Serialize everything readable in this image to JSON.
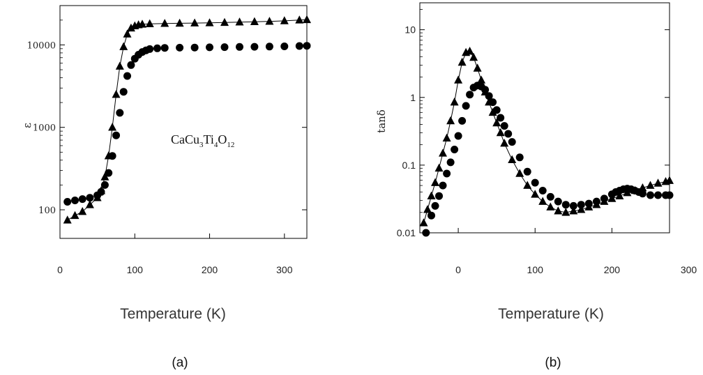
{
  "chart_data": [
    {
      "type": "scatter",
      "panel_label": "(a)",
      "xlabel": "Temperature (K)",
      "ylabel": "ε",
      "xlim": [
        0,
        330
      ],
      "ylim": [
        45,
        30000
      ],
      "yscale": "log",
      "xticks": [
        0,
        100,
        200,
        300
      ],
      "xtick_labels": [
        "0",
        "100",
        "200",
        "300"
      ],
      "yticks": [
        100,
        1000,
        10000
      ],
      "ytick_labels": [
        "100",
        "1000",
        "10000"
      ],
      "annotation": {
        "base": "CaCu",
        "sub1": "3",
        "mid": "Ti",
        "sub2": "4",
        "tail": "O",
        "sub3": "12"
      },
      "series": [
        {
          "marker": "triangle",
          "connected": true,
          "x": [
            10,
            20,
            30,
            40,
            50,
            55,
            60,
            65,
            70,
            75,
            80,
            85,
            90,
            95,
            100,
            105,
            110,
            120,
            140,
            160,
            180,
            200,
            220,
            240,
            260,
            280,
            300,
            320,
            330
          ],
          "y": [
            75,
            85,
            95,
            115,
            140,
            170,
            250,
            450,
            1000,
            2500,
            5500,
            9500,
            13500,
            16000,
            17000,
            17500,
            17800,
            18000,
            18200,
            18300,
            18400,
            18500,
            18700,
            18900,
            19100,
            19300,
            19600,
            20000,
            20200
          ]
        },
        {
          "marker": "circle",
          "connected": false,
          "x": [
            10,
            20,
            30,
            40,
            50,
            55,
            60,
            65,
            70,
            75,
            80,
            85,
            90,
            95,
            100,
            105,
            110,
            115,
            120,
            130,
            140,
            160,
            180,
            200,
            220,
            240,
            260,
            280,
            300,
            320,
            330
          ],
          "y": [
            125,
            130,
            135,
            140,
            150,
            165,
            200,
            280,
            450,
            800,
            1500,
            2700,
            4200,
            5700,
            6800,
            7600,
            8200,
            8600,
            8900,
            9100,
            9200,
            9250,
            9300,
            9350,
            9400,
            9450,
            9500,
            9550,
            9600,
            9700,
            9750
          ]
        }
      ]
    },
    {
      "type": "scatter",
      "panel_label": "(b)",
      "xlabel": "Temperature (K)",
      "ylabel": "tanδ",
      "xlim": [
        -50,
        275
      ],
      "ylim": [
        0.01,
        25
      ],
      "yscale": "log",
      "xticks": [
        0,
        100,
        200,
        300
      ],
      "xtick_labels": [
        "0",
        "100",
        "200",
        "300"
      ],
      "yticks": [
        0.01,
        0.1,
        1,
        10
      ],
      "ytick_labels": [
        "0.01",
        "0.1",
        "1",
        "10"
      ],
      "series": [
        {
          "marker": "triangle",
          "connected": true,
          "x": [
            -45,
            -40,
            -35,
            -30,
            -25,
            -20,
            -15,
            -10,
            -5,
            0,
            5,
            10,
            15,
            20,
            25,
            30,
            35,
            40,
            45,
            50,
            55,
            60,
            70,
            80,
            90,
            100,
            110,
            120,
            130,
            140,
            150,
            160,
            170,
            180,
            190,
            200,
            210,
            220,
            230,
            240,
            250,
            260,
            270,
            275
          ],
          "y": [
            0.014,
            0.022,
            0.035,
            0.055,
            0.09,
            0.15,
            0.25,
            0.45,
            0.85,
            1.8,
            3.3,
            4.6,
            4.8,
            3.9,
            2.7,
            1.8,
            1.2,
            0.85,
            0.6,
            0.42,
            0.3,
            0.21,
            0.12,
            0.075,
            0.05,
            0.037,
            0.029,
            0.024,
            0.021,
            0.02,
            0.021,
            0.022,
            0.024,
            0.026,
            0.029,
            0.032,
            0.035,
            0.039,
            0.042,
            0.046,
            0.05,
            0.054,
            0.057,
            0.059
          ]
        },
        {
          "marker": "circle",
          "connected": false,
          "x": [
            -42,
            -35,
            -30,
            -25,
            -20,
            -15,
            -10,
            -5,
            0,
            5,
            10,
            15,
            20,
            25,
            30,
            35,
            40,
            45,
            50,
            55,
            60,
            65,
            70,
            80,
            90,
            100,
            110,
            120,
            130,
            140,
            150,
            160,
            170,
            180,
            190,
            200,
            205,
            210,
            215,
            220,
            225,
            230,
            235,
            240,
            250,
            260,
            270,
            275
          ],
          "y": [
            0.01,
            0.018,
            0.025,
            0.035,
            0.05,
            0.075,
            0.11,
            0.17,
            0.27,
            0.45,
            0.75,
            1.1,
            1.4,
            1.5,
            1.45,
            1.3,
            1.05,
            0.85,
            0.65,
            0.5,
            0.38,
            0.29,
            0.22,
            0.13,
            0.08,
            0.055,
            0.042,
            0.034,
            0.029,
            0.026,
            0.025,
            0.026,
            0.027,
            0.029,
            0.032,
            0.037,
            0.04,
            0.042,
            0.044,
            0.045,
            0.044,
            0.042,
            0.04,
            0.038,
            0.036,
            0.036,
            0.036,
            0.036
          ]
        }
      ]
    }
  ]
}
